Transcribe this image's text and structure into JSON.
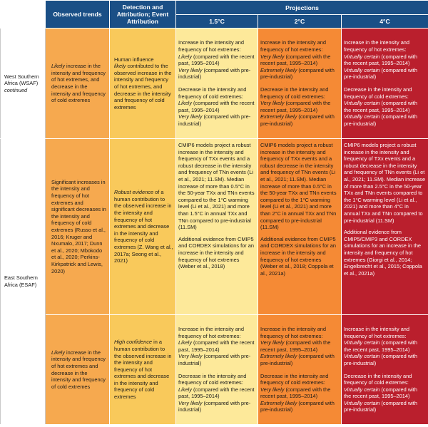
{
  "header": {
    "observed": "Observed trends",
    "detection": "Detection and Attribution; Event Attribution",
    "projections": "Projections",
    "p15": "1.5°C",
    "p2": "2°C",
    "p4": "4°C"
  },
  "wsaf": {
    "name": "West Southern Africa (WSAF)",
    "continued": "continued",
    "obs_italic": "Likely",
    "obs_rest": " increase in the intensity and frequency of hot extremes, and decrease in the intensity and frequency of cold extremes",
    "det": "Human influence",
    "det_italic": "likely",
    "det_rest": " contributed to the observed increase in the intensity and frequency of hot extremes, and decrease in the intensity and frequency of cold extremes",
    "p15_hot": "Increase in the intensity and frequency of hot extremes:",
    "p15_hot_l1": "Likely",
    "p15_hot_l1r": " (compared with the recent past, 1995–2014)",
    "p15_hot_l2": "Very likely",
    "p15_hot_l2r": " (compared with pre-industrial)",
    "p15_cold": "Decrease in the intensity and frequency of cold extremes:",
    "p15_cold_l1": "Likely",
    "p15_cold_l1r": " (compared with the recent past, 1995–2014)",
    "p15_cold_l2": "Very likely",
    "p15_cold_l2r": " (compared with pre-industrial)",
    "p2_hot": "Increase in the intensity and frequency of hot extremes:",
    "p2_hot_l1": "Very likely",
    "p2_hot_l1r": " (compared with the recent past, 1995–2014)",
    "p2_hot_l2": "Extremely likely",
    "p2_hot_l2r": " (compared with pre-industrial)",
    "p2_cold": "Decrease in the intensity and frequency of cold extremes:",
    "p2_cold_l1": "Very likely",
    "p2_cold_l1r": " (compared with the recent past, 1995–2014)",
    "p2_cold_l2": "Extremely likely",
    "p2_cold_l2r": " (compared with pre-industrial)",
    "p4_hot": "Increase in the intensity and frequency of hot extremes:",
    "p4_hot_l1": "Virtually certain",
    "p4_hot_l1r": " (compared with the recent past, 1995–2014)",
    "p4_hot_l2": "Virtually certain",
    "p4_hot_l2r": " (compared with pre-industrial)",
    "p4_cold": "Decrease in the intensity and frequency of cold extremes:",
    "p4_cold_l1": "Virtually certain",
    "p4_cold_l1r": " (compared with the recent past, 1995–2014)",
    "p4_cold_l2": "Virtually certain",
    "p4_cold_l2r": " (compared with pre-industrial)"
  },
  "esaf": {
    "name": "East Southern Africa (ESAF)",
    "obs1": "Significant increases in the intensity and frequency of hot extremes and significant decreases in the intensity and frequency of cold extremes (Russo et al., 2016; Kruger and Nxumalo, 2017; Dunn et al., 2020; Mbokodo et al., 2020; Perkins-Kirkpatrick and Lewis, 2020)",
    "det1_italic": "Robust evidence",
    "det1_rest": " of a human contribution to the observed increase in the intensity and frequency of hot extremes and decrease in the intensity and frequency of cold extremes (Z. Wang et al., 2017a; Seong et al., 2021)",
    "p15_a": "CMIP6 models project a robust increase in the intensity and frequency of TXx events and a robust decrease in the intensity and frequency of TNn events (Li et al., 2021; 11.SM). Median increase of more than 0.5°C in the 50-year TXx and TNn events compared to the 1°C warming level (Li et al., 2021) and more than 1.5°C in annual TXx and TNn compared to pre-industrial (11.SM)",
    "p15_b": "Additional evidence from CMIP5 and CORDEX simulations for an increase in the intensity and frequency of hot extremes (Weber et al., 2018)",
    "p2_a": "CMIP6 models project a robust increase in the intensity and frequency of TXx events and a robust decrease in the intensity and frequency of TNn events (Li et al., 2021; 11.SM). Median increase of more than 0.5°C in the 50-year TXx and TNn events compared to the 1°C warming level (Li et al., 2021) and more than 2°C in annual TXx and TNn compared to pre-industrial (11.SM)",
    "p2_b": "Additional evidence from CMIP5 and CORDEX simulations for an increase in the intensity and frequency of hot extremes (Weber et al., 2018; Coppola et al., 2021a)",
    "p4_a": "CMIP6 models project a robust increase in the intensity and frequency of TXx events and a robust decrease in the intensity and frequency of TNn events (Li et al., 2021; 11.SM). Median increase of more than 2.5°C in the 50-year TXx and TNn events compared to the 1°C warming level (Li et al., 2021) and more than 4°C in annual TXx and TNn compared to pre-industrial (11.SM)",
    "p4_b": "Additional evidence from CMIP5/CMIP3 and CORDEX simulations for an increase in the intensity and frequency of hot extremes (Giorgi et al., 2014; Engelbrecht et al., 2015; Coppola et al., 2021a)",
    "obs2_italic": "Likely",
    "obs2_rest": " increase in the intensity and frequency of hot extremes and decrease in the intensity and frequency of cold extremes",
    "det2_italic": "High confidence",
    "det2_rest": " in a human contribution to the observed increase in the intensity and frequency of hot extremes and decrease in the intensity and frequency of cold extremes",
    "p15_hot": "Increase in the intensity and frequency of hot extremes:",
    "p15_hot_l1": "Likely",
    "p15_hot_l1r": " (compared with the recent past, 1995–2014)",
    "p15_hot_l2": "Very likely",
    "p15_hot_l2r": " (compared with pre-industrial)",
    "p15_cold": "Decrease in the intensity and frequency of cold extremes:",
    "p15_cold_l1": "Likely",
    "p15_cold_l1r": " (compared with the recent past, 1995–2014)",
    "p15_cold_l2": "Very likely",
    "p15_cold_l2r": " (compared with pre-industrial)",
    "p2_hot": "Increase in the intensity and frequency of hot extremes:",
    "p2_hot_l1": "Very likely",
    "p2_hot_l1r": " (compared with the recent past, 1995–2014)",
    "p2_hot_l2": "Extremely likely",
    "p2_hot_l2r": " (compared with pre-industrial)",
    "p2_cold": "Decrease in the intensity and frequency of cold extremes:",
    "p2_cold_l1": "Very likely",
    "p2_cold_l1r": " (compared with the recent past, 1995–2014)",
    "p2_cold_l2": "Extremely likely",
    "p2_cold_l2r": " (compared with pre-industrial)",
    "p4_hot": "Increase in the intensity and frequency of hot extremes:",
    "p4_hot_l1": "Virtually certain",
    "p4_hot_l1r": " (compared with the recent past, 1995–2014)",
    "p4_hot_l2": "Virtually certain",
    "p4_hot_l2r": " (compared with pre-industrial)",
    "p4_cold": "Decrease in the intensity and frequency of cold extremes:",
    "p4_cold_l1": "Virtually certain",
    "p4_cold_l1r": " (compared with the recent past, 1995–2014)",
    "p4_cold_l2": "Virtually certain",
    "p4_cold_l2r": " (compared with pre-industrial)"
  },
  "colors": {
    "header": "#1a4f86",
    "observed": "#f6a94f",
    "detection": "#f9c95b",
    "p15": "#fde99a",
    "p2": "#f58a35",
    "p4": "#ba1f2d"
  }
}
